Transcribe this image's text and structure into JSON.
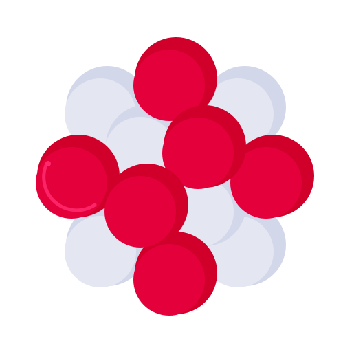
{
  "icon": {
    "name": "atomic-nucleus-icon",
    "colors": {
      "background": "#ffffff",
      "proton_base": "#e4003b",
      "proton_shade": "#d1002a",
      "proton_highlight": "#ff2a6e",
      "neutron_base": "#e4e7f2",
      "neutron_shade": "#d3d7ea"
    }
  }
}
